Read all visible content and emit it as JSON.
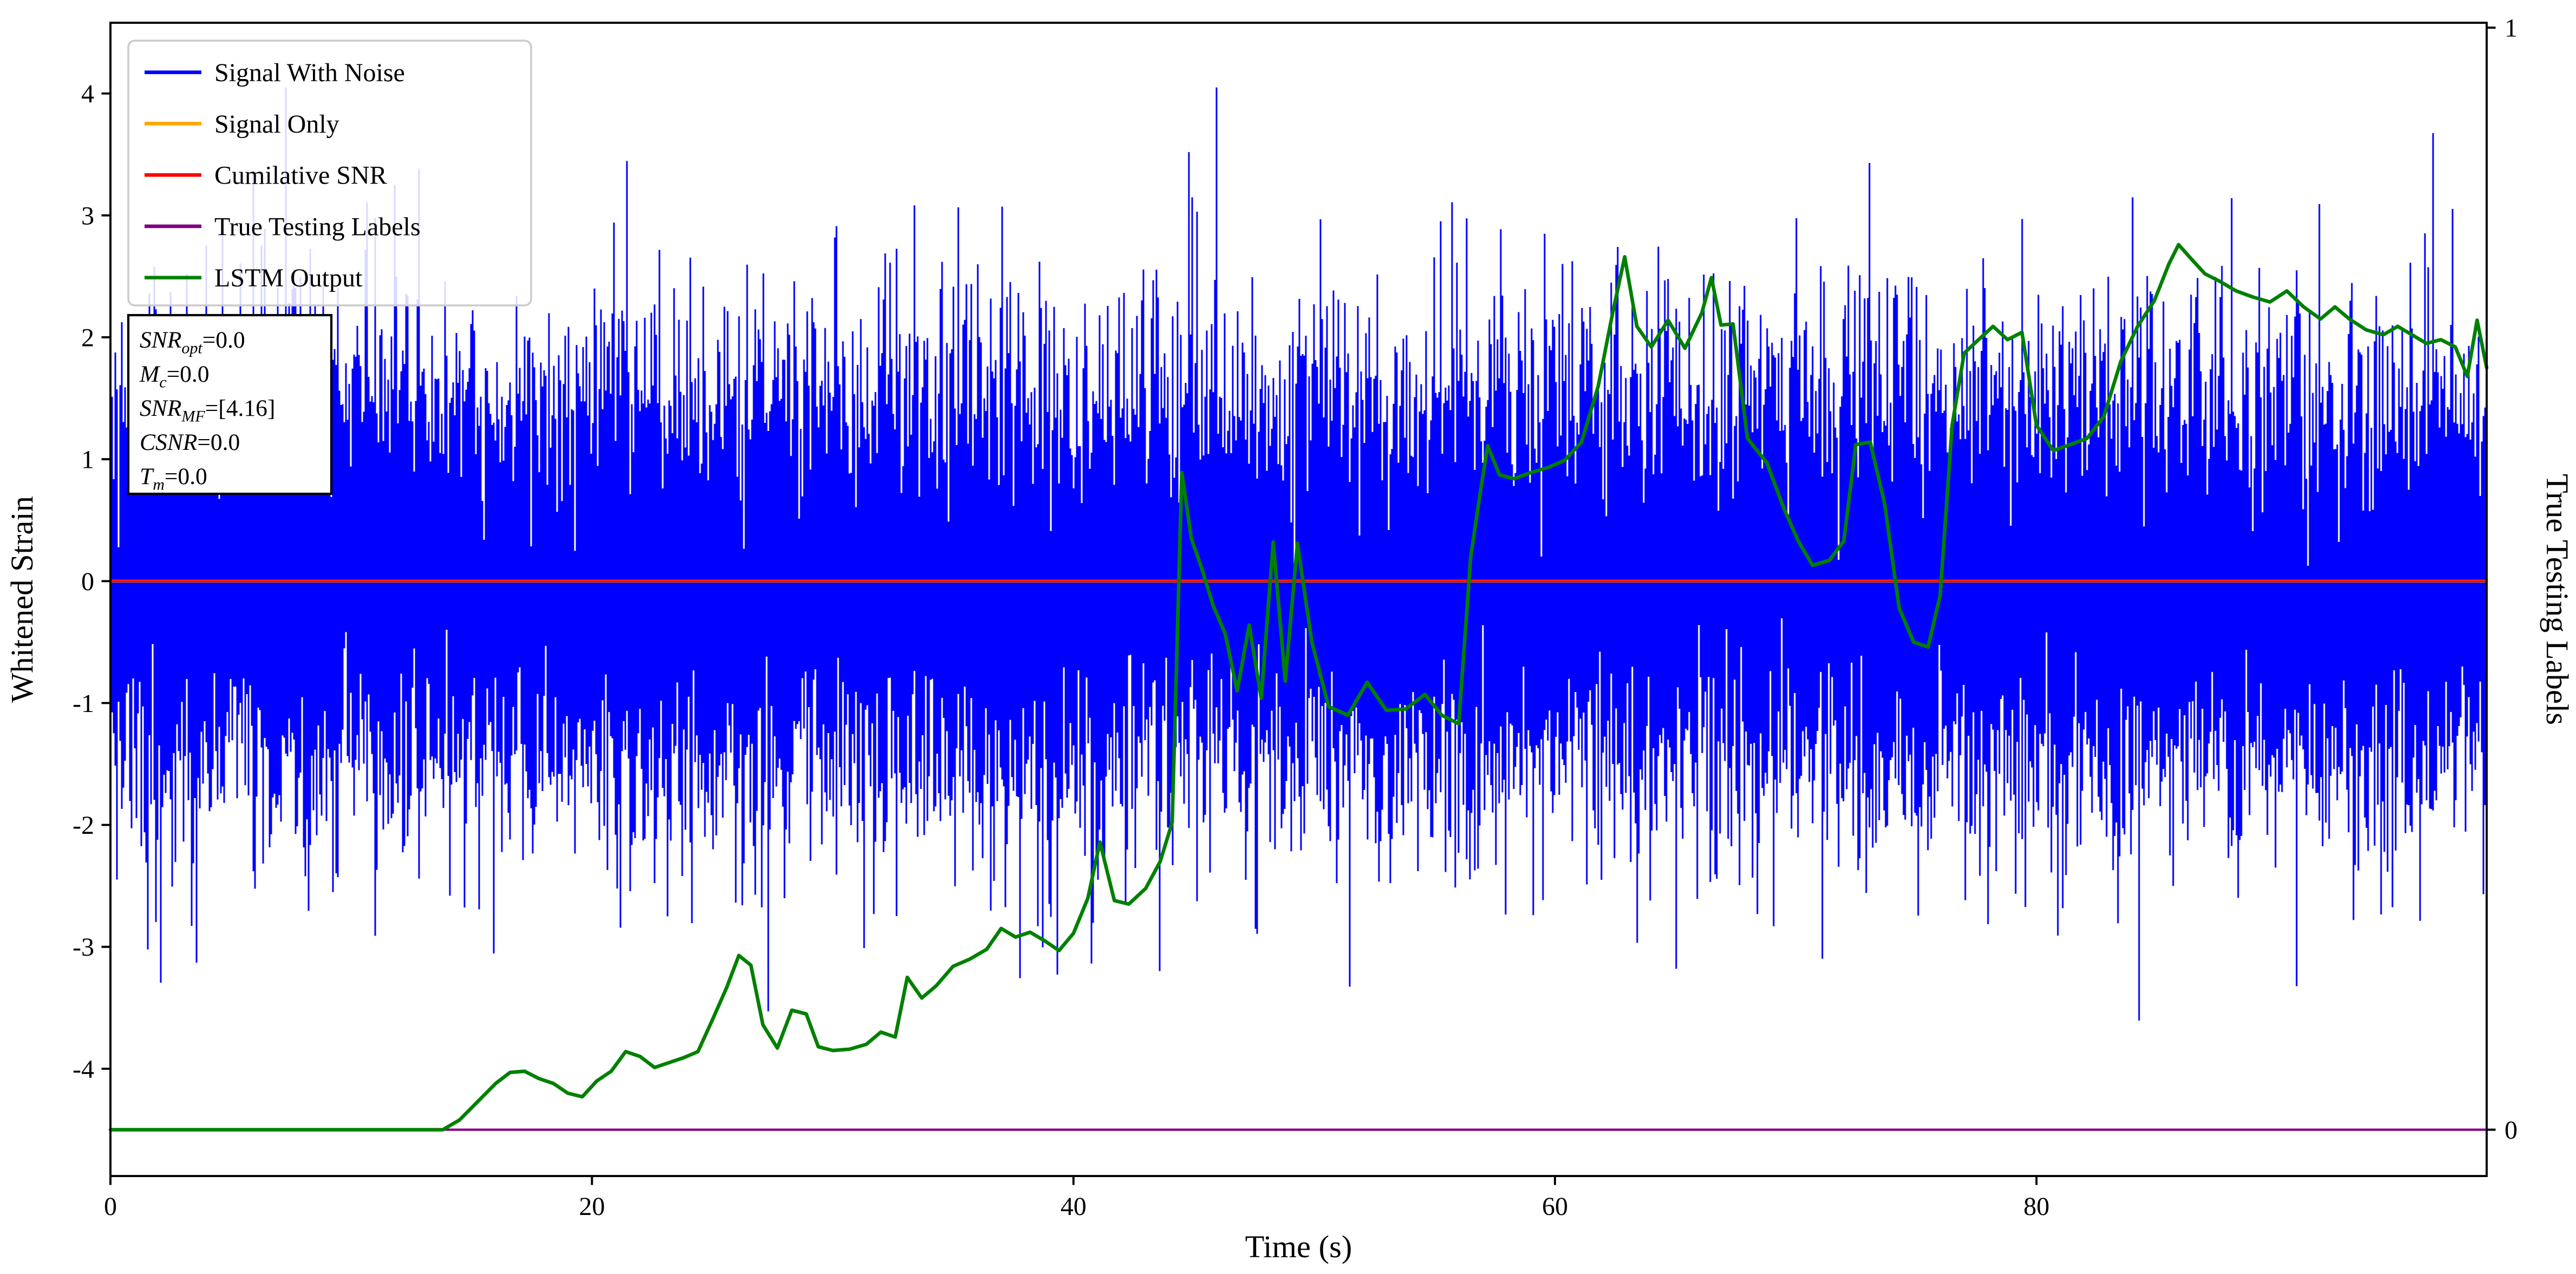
{
  "figure": {
    "background": "#ffffff"
  },
  "axes": {
    "xlabel": "Time (s)",
    "ylabel_left": "Whitened Strain",
    "ylabel_right": "True Testing Labels"
  },
  "legend": {
    "items": [
      {
        "label": "Signal With Noise",
        "color": "#0000ff"
      },
      {
        "label": "Signal Only",
        "color": "#ffa500"
      },
      {
        "label": "Cumilative SNR",
        "color": "#ff0000"
      },
      {
        "label": "True Testing Labels",
        "color": "#800080"
      },
      {
        "label": "LSTM Output",
        "color": "#008000"
      }
    ]
  },
  "annotation": {
    "lines": [
      {
        "base": "SNR",
        "sub": "opt",
        "rest": "=0.0"
      },
      {
        "base": "M",
        "sub": "c",
        "rest": "=0.0"
      },
      {
        "base": "SNR",
        "sub": "MF",
        "rest": "=[4.16]"
      },
      {
        "base": "CSNR",
        "sub": "",
        "rest": "=0.0"
      },
      {
        "base": "T",
        "sub": "m",
        "rest": "=0.0"
      }
    ]
  },
  "chart_data": {
    "type": "line",
    "title": "",
    "xlabel": "Time (s)",
    "ylabel_left": "Whitened Strain",
    "ylabel_right": "True Testing Labels",
    "xlim": [
      0,
      98.7
    ],
    "ylim_left": [
      -4.88,
      4.58
    ],
    "x_ticks": [
      0,
      20,
      40,
      60,
      80
    ],
    "y_ticks_left": [
      -4,
      -3,
      -2,
      -1,
      0,
      1,
      2,
      3,
      4
    ],
    "right_axis": {
      "ticks": [
        0,
        1
      ],
      "zero_at_left_value": -4.5,
      "one_at_left_value": 4.54
    },
    "grid": false,
    "legend_position": "upper left",
    "series": [
      {
        "name": "Signal With Noise",
        "color": "#0000ff",
        "kind": "noise",
        "mean": 0,
        "std": 0.93,
        "typical_envelope": [
          -2.2,
          2.2
        ],
        "max_spikes": [
          -4.2,
          4.0
        ],
        "seed": 11
      },
      {
        "name": "Signal Only",
        "color": "#ffa500",
        "kind": "constant",
        "value": 0
      },
      {
        "name": "Cumilative SNR",
        "color": "#ff0000",
        "kind": "constant",
        "value": 0
      },
      {
        "name": "True Testing Labels",
        "color": "#800080",
        "kind": "constant_right",
        "value": 0
      },
      {
        "name": "LSTM Output",
        "color": "#008000",
        "kind": "line",
        "points": [
          [
            0,
            -4.5
          ],
          [
            13.8,
            -4.5
          ],
          [
            14.5,
            -4.42
          ],
          [
            15.2,
            -4.28
          ],
          [
            16,
            -4.12
          ],
          [
            16.6,
            -4.03
          ],
          [
            17.2,
            -4.02
          ],
          [
            17.8,
            -4.08
          ],
          [
            18.4,
            -4.12
          ],
          [
            19,
            -4.2
          ],
          [
            19.6,
            -4.23
          ],
          [
            20.2,
            -4.1
          ],
          [
            20.8,
            -4.02
          ],
          [
            21.4,
            -3.86
          ],
          [
            22,
            -3.9
          ],
          [
            22.6,
            -3.99
          ],
          [
            23.2,
            -3.95
          ],
          [
            23.8,
            -3.91
          ],
          [
            24.4,
            -3.86
          ],
          [
            25,
            -3.6
          ],
          [
            25.6,
            -3.33
          ],
          [
            26.1,
            -3.07
          ],
          [
            26.6,
            -3.15
          ],
          [
            27.1,
            -3.64
          ],
          [
            27.7,
            -3.83
          ],
          [
            28.3,
            -3.52
          ],
          [
            28.9,
            -3.55
          ],
          [
            29.4,
            -3.82
          ],
          [
            30,
            -3.85
          ],
          [
            30.7,
            -3.84
          ],
          [
            31.4,
            -3.8
          ],
          [
            32,
            -3.7
          ],
          [
            32.6,
            -3.74
          ],
          [
            33.1,
            -3.25
          ],
          [
            33.7,
            -3.42
          ],
          [
            34.3,
            -3.32
          ],
          [
            35,
            -3.16
          ],
          [
            35.7,
            -3.1
          ],
          [
            36.4,
            -3.02
          ],
          [
            37,
            -2.85
          ],
          [
            37.6,
            -2.92
          ],
          [
            38.2,
            -2.88
          ],
          [
            38.8,
            -2.95
          ],
          [
            39.4,
            -3.03
          ],
          [
            40,
            -2.89
          ],
          [
            40.6,
            -2.6
          ],
          [
            41.1,
            -2.14
          ],
          [
            41.7,
            -2.62
          ],
          [
            42.3,
            -2.65
          ],
          [
            43,
            -2.52
          ],
          [
            43.6,
            -2.3
          ],
          [
            44.1,
            -1.98
          ],
          [
            44.5,
            0.89
          ],
          [
            44.9,
            0.35
          ],
          [
            45.3,
            0.12
          ],
          [
            45.8,
            -0.2
          ],
          [
            46.3,
            -0.43
          ],
          [
            46.8,
            -0.9
          ],
          [
            47.3,
            -0.36
          ],
          [
            47.8,
            -0.96
          ],
          [
            48.3,
            0.32
          ],
          [
            48.8,
            -0.82
          ],
          [
            49.3,
            0.31
          ],
          [
            49.9,
            -0.5
          ],
          [
            50.6,
            -1.03
          ],
          [
            51.4,
            -1.1
          ],
          [
            52.2,
            -0.83
          ],
          [
            53,
            -1.06
          ],
          [
            53.8,
            -1.05
          ],
          [
            54.6,
            -0.93
          ],
          [
            55.3,
            -1.1
          ],
          [
            56,
            -1.17
          ],
          [
            56.5,
            0.2
          ],
          [
            56.9,
            0.73
          ],
          [
            57.2,
            1.11
          ],
          [
            57.7,
            0.87
          ],
          [
            58.3,
            0.84
          ],
          [
            59,
            0.89
          ],
          [
            59.7,
            0.93
          ],
          [
            60.4,
            0.99
          ],
          [
            61.1,
            1.14
          ],
          [
            61.8,
            1.6
          ],
          [
            62.4,
            2.2
          ],
          [
            62.9,
            2.66
          ],
          [
            63.4,
            2.09
          ],
          [
            64,
            1.92
          ],
          [
            64.7,
            2.14
          ],
          [
            65.4,
            1.91
          ],
          [
            66.1,
            2.2
          ],
          [
            66.5,
            2.49
          ],
          [
            66.9,
            2.1
          ],
          [
            67.4,
            2.11
          ],
          [
            68,
            1.17
          ],
          [
            68.8,
            0.97
          ],
          [
            69.5,
            0.6
          ],
          [
            70.1,
            0.33
          ],
          [
            70.7,
            0.13
          ],
          [
            71.4,
            0.17
          ],
          [
            72,
            0.33
          ],
          [
            72.5,
            1.12
          ],
          [
            73.1,
            1.14
          ],
          [
            73.7,
            0.63
          ],
          [
            74.3,
            -0.22
          ],
          [
            74.9,
            -0.5
          ],
          [
            75.5,
            -0.54
          ],
          [
            76,
            -0.12
          ],
          [
            76.5,
            1.28
          ],
          [
            77,
            1.87
          ],
          [
            77.6,
            1.98
          ],
          [
            78.2,
            2.09
          ],
          [
            78.8,
            1.98
          ],
          [
            79.4,
            2.04
          ],
          [
            80,
            1.28
          ],
          [
            80.7,
            1.07
          ],
          [
            81.4,
            1.12
          ],
          [
            82.1,
            1.17
          ],
          [
            82.8,
            1.35
          ],
          [
            83.5,
            1.8
          ],
          [
            84.2,
            2.09
          ],
          [
            84.9,
            2.3
          ],
          [
            85.5,
            2.6
          ],
          [
            85.9,
            2.76
          ],
          [
            86.4,
            2.65
          ],
          [
            87,
            2.52
          ],
          [
            87.6,
            2.46
          ],
          [
            88.3,
            2.38
          ],
          [
            89,
            2.33
          ],
          [
            89.7,
            2.29
          ],
          [
            90.4,
            2.38
          ],
          [
            91.1,
            2.25
          ],
          [
            91.8,
            2.15
          ],
          [
            92.4,
            2.25
          ],
          [
            93,
            2.15
          ],
          [
            93.7,
            2.06
          ],
          [
            94.4,
            2.02
          ],
          [
            95,
            2.09
          ],
          [
            95.6,
            2.02
          ],
          [
            96.2,
            1.95
          ],
          [
            96.8,
            1.98
          ],
          [
            97.4,
            1.92
          ],
          [
            97.9,
            1.68
          ],
          [
            98.3,
            2.14
          ],
          [
            98.7,
            1.75
          ]
        ]
      }
    ]
  }
}
